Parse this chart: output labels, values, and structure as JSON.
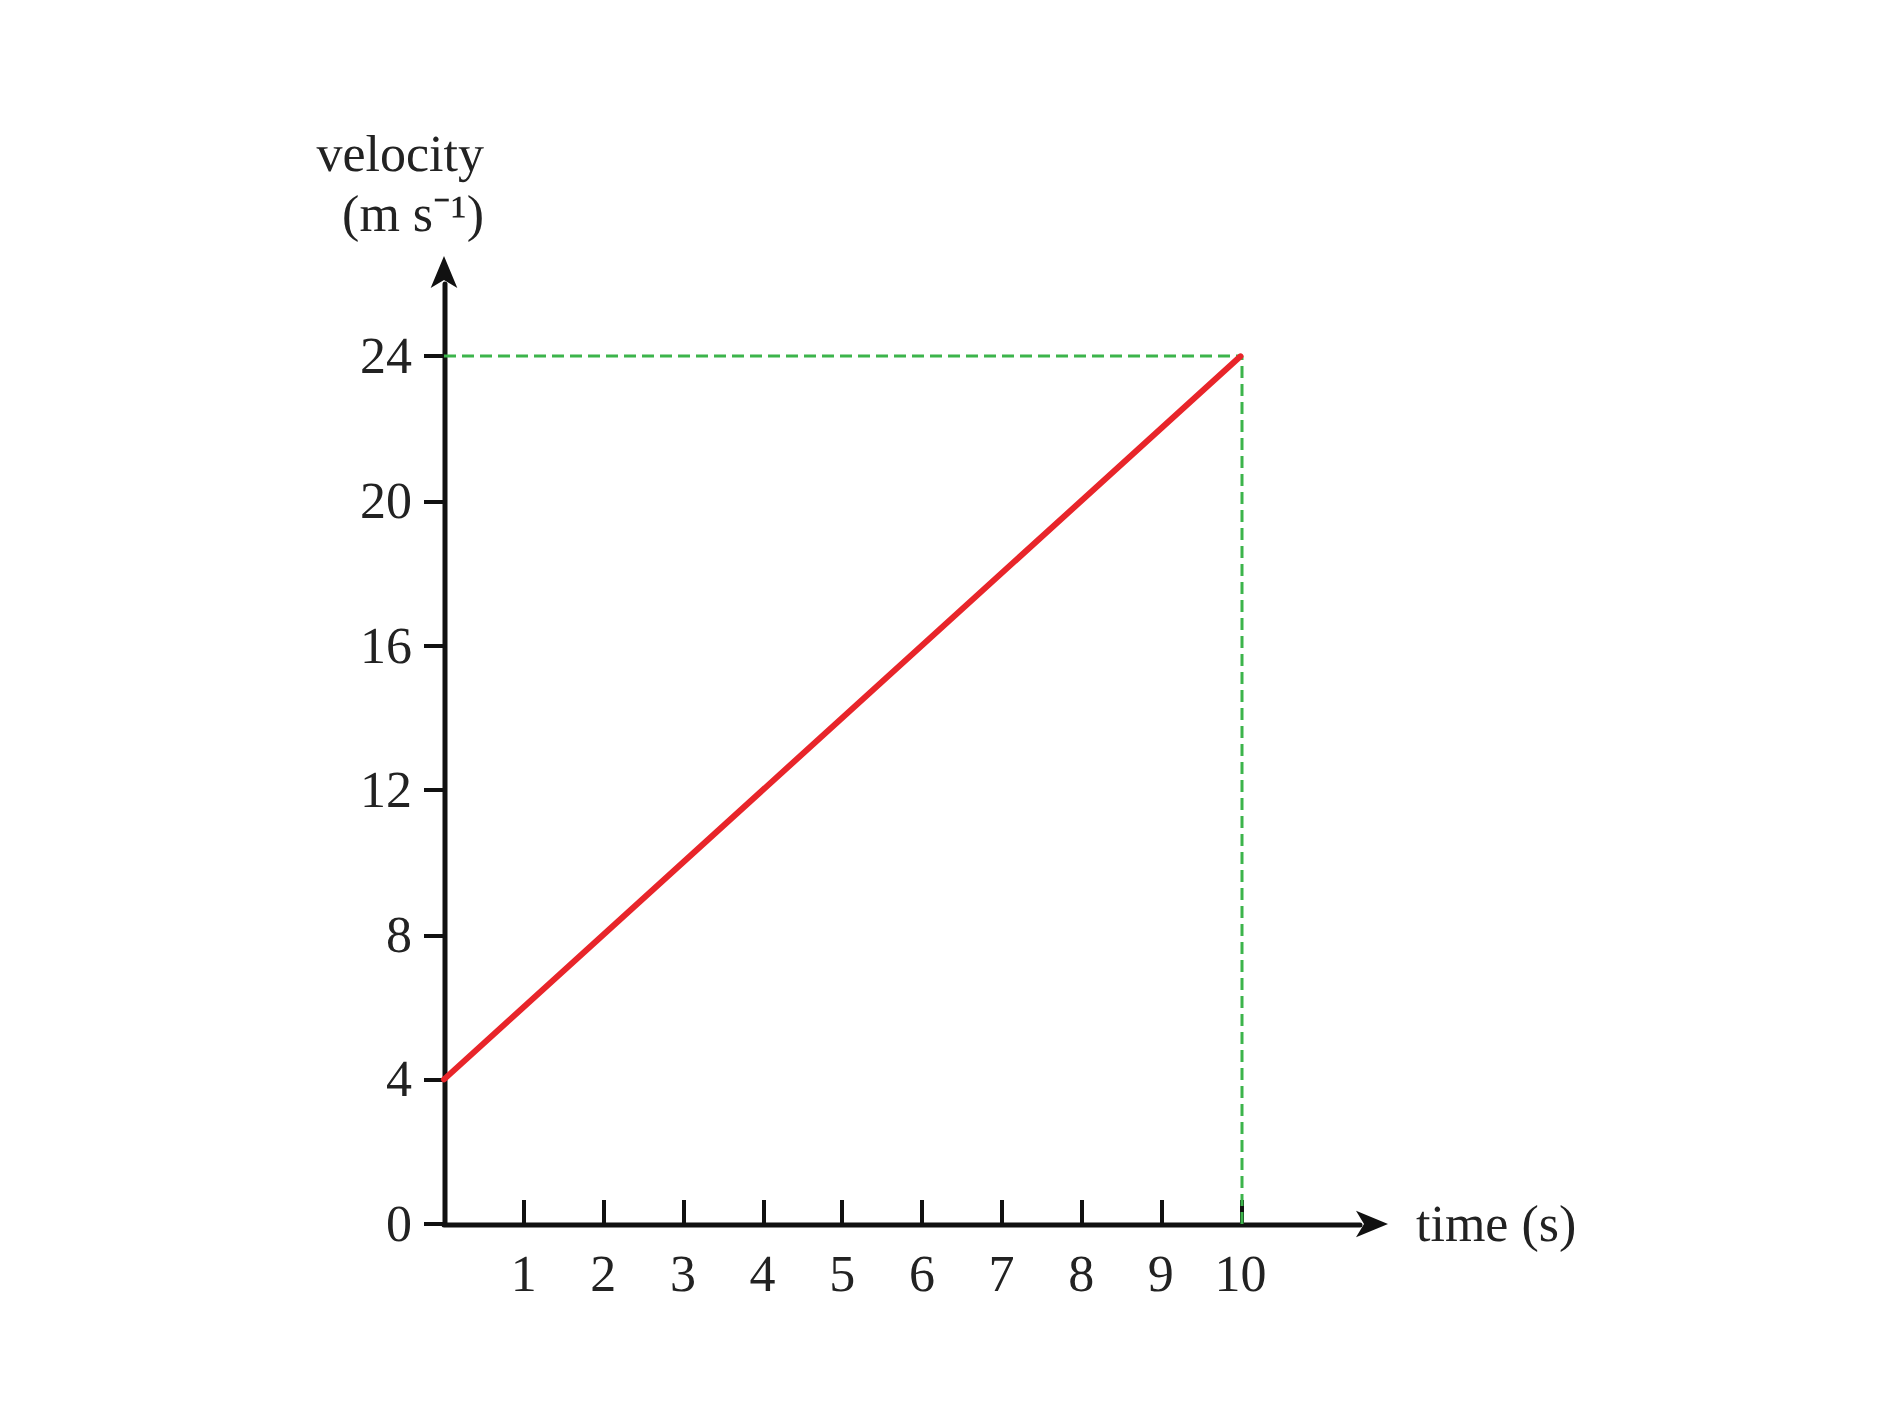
{
  "chart_data": {
    "type": "line",
    "xlabel": "time (s)",
    "ylabel": "velocity\n(m s⁻¹)",
    "x": [
      0,
      10
    ],
    "series": [
      {
        "color": "#e8252a",
        "values": [
          4,
          24
        ]
      }
    ],
    "xlim": [
      0,
      11.5
    ],
    "ylim": [
      0,
      26
    ],
    "xticks": [
      1,
      2,
      3,
      4,
      5,
      6,
      7,
      8,
      9,
      10
    ],
    "yticks": [
      0,
      4,
      8,
      12,
      16,
      20,
      24
    ],
    "ref_lines": [
      {
        "axis": "y",
        "value": 24,
        "color": "#3cb44b",
        "line_style": "dashed"
      },
      {
        "axis": "x",
        "value": 10,
        "color": "#3cb44b",
        "line_style": "dashed"
      }
    ],
    "grid": false,
    "marker": "none",
    "line_style": "solid"
  }
}
